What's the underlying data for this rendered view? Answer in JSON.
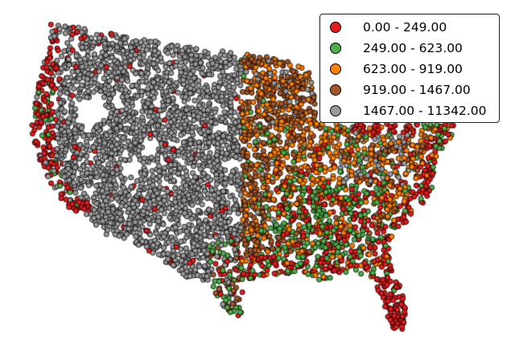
{
  "map": {
    "kind": "graduated dot map",
    "region": "contiguous United States",
    "point_style": "filled circle with black outline"
  },
  "legend": {
    "entries": [
      {
        "label": "0.00 - 249.00",
        "color": "#e41a1c"
      },
      {
        "label": "249.00 - 623.00",
        "color": "#4daf4a"
      },
      {
        "label": "623.00 - 919.00",
        "color": "#ff7f00"
      },
      {
        "label": "919.00 - 1467.00",
        "color": "#a65628"
      },
      {
        "label": "1467.00 - 11342.00",
        "color": "#999999"
      }
    ]
  }
}
